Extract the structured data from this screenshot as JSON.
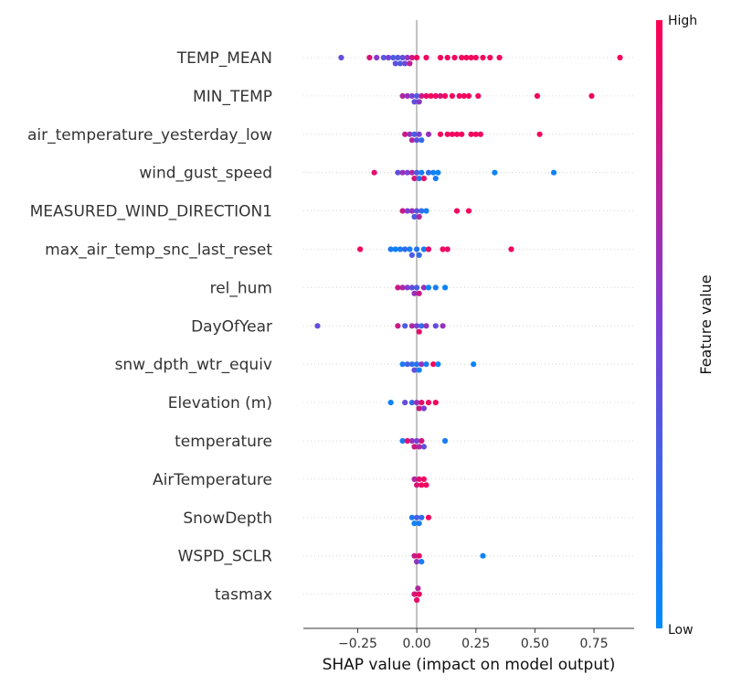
{
  "chart_data": {
    "type": "scatter",
    "subtype": "shap-beeswarm",
    "xlabel": "SHAP value (impact on model output)",
    "xlim": [
      -0.48,
      0.92
    ],
    "xticks": [
      -0.25,
      0.0,
      0.25,
      0.5,
      0.75
    ],
    "xtick_labels": [
      "−0.25",
      "0.00",
      "0.25",
      "0.50",
      "0.75"
    ],
    "features": [
      {
        "name": "TEMP_MEAN",
        "points": [
          {
            "x": -0.32,
            "v": 0.4
          },
          {
            "x": -0.2,
            "v": 0.85
          },
          {
            "x": -0.17,
            "v": 0.55
          },
          {
            "x": -0.14,
            "v": 0.35
          },
          {
            "x": -0.12,
            "v": 0.5
          },
          {
            "x": -0.1,
            "v": 0.3
          },
          {
            "x": -0.09,
            "v": 0.4
          },
          {
            "x": -0.08,
            "v": 0.35
          },
          {
            "x": -0.07,
            "v": 0.3
          },
          {
            "x": -0.06,
            "v": 0.4
          },
          {
            "x": -0.05,
            "v": 0.45
          },
          {
            "x": -0.04,
            "v": 0.6
          },
          {
            "x": -0.03,
            "v": 0.75
          },
          {
            "x": -0.02,
            "v": 0.8
          },
          {
            "x": 0.0,
            "v": 0.95
          },
          {
            "x": 0.04,
            "v": 0.95
          },
          {
            "x": 0.1,
            "v": 0.95
          },
          {
            "x": 0.13,
            "v": 0.95
          },
          {
            "x": 0.16,
            "v": 0.95
          },
          {
            "x": 0.19,
            "v": 0.95
          },
          {
            "x": 0.21,
            "v": 0.95
          },
          {
            "x": 0.23,
            "v": 0.95
          },
          {
            "x": 0.25,
            "v": 0.95
          },
          {
            "x": 0.28,
            "v": 0.95
          },
          {
            "x": 0.31,
            "v": 0.95
          },
          {
            "x": 0.35,
            "v": 0.95
          },
          {
            "x": 0.86,
            "v": 0.95
          }
        ]
      },
      {
        "name": "MIN_TEMP",
        "points": [
          {
            "x": -0.06,
            "v": 0.7
          },
          {
            "x": -0.04,
            "v": 0.6
          },
          {
            "x": -0.02,
            "v": 0.5
          },
          {
            "x": -0.01,
            "v": 0.4
          },
          {
            "x": 0.0,
            "v": 0.3
          },
          {
            "x": 0.01,
            "v": 0.55
          },
          {
            "x": 0.02,
            "v": 0.8
          },
          {
            "x": 0.04,
            "v": 0.9
          },
          {
            "x": 0.06,
            "v": 0.95
          },
          {
            "x": 0.08,
            "v": 0.95
          },
          {
            "x": 0.1,
            "v": 0.85
          },
          {
            "x": 0.12,
            "v": 0.95
          },
          {
            "x": 0.15,
            "v": 0.95
          },
          {
            "x": 0.18,
            "v": 0.95
          },
          {
            "x": 0.2,
            "v": 0.95
          },
          {
            "x": 0.22,
            "v": 0.95
          },
          {
            "x": 0.26,
            "v": 0.95
          },
          {
            "x": 0.51,
            "v": 0.95
          },
          {
            "x": 0.74,
            "v": 0.95
          }
        ]
      },
      {
        "name": "air_temperature_yesterday_low",
        "points": [
          {
            "x": -0.05,
            "v": 0.8
          },
          {
            "x": -0.03,
            "v": 0.6
          },
          {
            "x": -0.02,
            "v": 0.7
          },
          {
            "x": -0.01,
            "v": 0.3
          },
          {
            "x": 0.0,
            "v": 0.4
          },
          {
            "x": 0.01,
            "v": 0.5
          },
          {
            "x": 0.02,
            "v": 0.2
          },
          {
            "x": 0.05,
            "v": 0.6
          },
          {
            "x": 0.1,
            "v": 0.95
          },
          {
            "x": 0.13,
            "v": 0.95
          },
          {
            "x": 0.15,
            "v": 0.95
          },
          {
            "x": 0.17,
            "v": 0.95
          },
          {
            "x": 0.19,
            "v": 0.95
          },
          {
            "x": 0.23,
            "v": 0.95
          },
          {
            "x": 0.25,
            "v": 0.95
          },
          {
            "x": 0.27,
            "v": 0.95
          },
          {
            "x": 0.52,
            "v": 0.95
          }
        ]
      },
      {
        "name": "wind_gust_speed",
        "points": [
          {
            "x": -0.18,
            "v": 0.9
          },
          {
            "x": -0.08,
            "v": 0.4
          },
          {
            "x": -0.06,
            "v": 0.6
          },
          {
            "x": -0.04,
            "v": 0.5
          },
          {
            "x": -0.02,
            "v": 0.7
          },
          {
            "x": -0.01,
            "v": 0.85
          },
          {
            "x": 0.0,
            "v": 0.3
          },
          {
            "x": 0.01,
            "v": 0.15
          },
          {
            "x": 0.02,
            "v": 0.1
          },
          {
            "x": 0.03,
            "v": 0.9
          },
          {
            "x": 0.05,
            "v": 0.2
          },
          {
            "x": 0.07,
            "v": 0.05
          },
          {
            "x": 0.08,
            "v": 0.1
          },
          {
            "x": 0.09,
            "v": 0.05
          },
          {
            "x": 0.33,
            "v": 0.05
          },
          {
            "x": 0.58,
            "v": 0.05
          }
        ]
      },
      {
        "name": "MEASURED_WIND_DIRECTION1",
        "points": [
          {
            "x": -0.06,
            "v": 0.8
          },
          {
            "x": -0.04,
            "v": 0.5
          },
          {
            "x": -0.02,
            "v": 0.6
          },
          {
            "x": -0.01,
            "v": 0.3
          },
          {
            "x": 0.0,
            "v": 0.4
          },
          {
            "x": 0.01,
            "v": 0.7
          },
          {
            "x": 0.02,
            "v": 0.2
          },
          {
            "x": 0.04,
            "v": 0.1
          },
          {
            "x": 0.17,
            "v": 0.95
          },
          {
            "x": 0.22,
            "v": 0.95
          }
        ]
      },
      {
        "name": "max_air_temp_snc_last_reset",
        "points": [
          {
            "x": -0.24,
            "v": 0.95
          },
          {
            "x": -0.11,
            "v": 0.1
          },
          {
            "x": -0.09,
            "v": 0.05
          },
          {
            "x": -0.07,
            "v": 0.1
          },
          {
            "x": -0.05,
            "v": 0.2
          },
          {
            "x": -0.03,
            "v": 0.1
          },
          {
            "x": -0.02,
            "v": 0.3
          },
          {
            "x": 0.0,
            "v": 0.15
          },
          {
            "x": 0.01,
            "v": 0.2
          },
          {
            "x": 0.03,
            "v": 0.1
          },
          {
            "x": 0.05,
            "v": 0.9
          },
          {
            "x": 0.11,
            "v": 0.95
          },
          {
            "x": 0.13,
            "v": 0.9
          },
          {
            "x": 0.4,
            "v": 0.95
          }
        ]
      },
      {
        "name": "rel_hum",
        "points": [
          {
            "x": -0.08,
            "v": 0.8
          },
          {
            "x": -0.06,
            "v": 0.7
          },
          {
            "x": -0.04,
            "v": 0.5
          },
          {
            "x": -0.02,
            "v": 0.4
          },
          {
            "x": -0.01,
            "v": 0.6
          },
          {
            "x": 0.0,
            "v": 0.3
          },
          {
            "x": 0.01,
            "v": 0.8
          },
          {
            "x": 0.03,
            "v": 0.6
          },
          {
            "x": 0.05,
            "v": 0.05
          },
          {
            "x": 0.08,
            "v": 0.1
          },
          {
            "x": 0.12,
            "v": 0.05
          }
        ]
      },
      {
        "name": "DayOfYear",
        "points": [
          {
            "x": -0.42,
            "v": 0.4
          },
          {
            "x": -0.08,
            "v": 0.8
          },
          {
            "x": -0.05,
            "v": 0.3
          },
          {
            "x": -0.02,
            "v": 0.7
          },
          {
            "x": 0.0,
            "v": 0.5
          },
          {
            "x": 0.01,
            "v": 0.9
          },
          {
            "x": 0.02,
            "v": 0.2
          },
          {
            "x": 0.04,
            "v": 0.6
          },
          {
            "x": 0.08,
            "v": 0.4
          },
          {
            "x": 0.11,
            "v": 0.6
          }
        ]
      },
      {
        "name": "snw_dpth_wtr_equiv",
        "points": [
          {
            "x": -0.06,
            "v": 0.1
          },
          {
            "x": -0.04,
            "v": 0.3
          },
          {
            "x": -0.02,
            "v": 0.2
          },
          {
            "x": -0.01,
            "v": 0.4
          },
          {
            "x": 0.0,
            "v": 0.15
          },
          {
            "x": 0.01,
            "v": 0.05
          },
          {
            "x": 0.02,
            "v": 0.6
          },
          {
            "x": 0.04,
            "v": 0.1
          },
          {
            "x": 0.07,
            "v": 0.95
          },
          {
            "x": 0.09,
            "v": 0.05
          },
          {
            "x": 0.24,
            "v": 0.05
          }
        ]
      },
      {
        "name": "Elevation (m)",
        "points": [
          {
            "x": -0.11,
            "v": 0.05
          },
          {
            "x": -0.05,
            "v": 0.4
          },
          {
            "x": -0.02,
            "v": 0.2
          },
          {
            "x": 0.0,
            "v": 0.6
          },
          {
            "x": 0.01,
            "v": 0.8
          },
          {
            "x": 0.02,
            "v": 0.9
          },
          {
            "x": 0.03,
            "v": 0.5
          },
          {
            "x": 0.05,
            "v": 0.95
          },
          {
            "x": 0.08,
            "v": 0.95
          }
        ]
      },
      {
        "name": "temperature",
        "points": [
          {
            "x": -0.06,
            "v": 0.1
          },
          {
            "x": -0.04,
            "v": 0.9
          },
          {
            "x": -0.02,
            "v": 0.6
          },
          {
            "x": -0.01,
            "v": 0.8
          },
          {
            "x": 0.0,
            "v": 0.5
          },
          {
            "x": 0.01,
            "v": 0.7
          },
          {
            "x": 0.02,
            "v": 0.85
          },
          {
            "x": 0.03,
            "v": 0.4
          },
          {
            "x": 0.12,
            "v": 0.1
          }
        ]
      },
      {
        "name": "AirTemperature",
        "points": [
          {
            "x": -0.01,
            "v": 0.7
          },
          {
            "x": 0.0,
            "v": 0.85
          },
          {
            "x": 0.01,
            "v": 0.9
          },
          {
            "x": 0.02,
            "v": 0.95
          },
          {
            "x": 0.03,
            "v": 0.95
          },
          {
            "x": 0.04,
            "v": 0.95
          }
        ]
      },
      {
        "name": "SnowDepth",
        "points": [
          {
            "x": -0.02,
            "v": 0.1
          },
          {
            "x": -0.01,
            "v": 0.05
          },
          {
            "x": 0.0,
            "v": 0.3
          },
          {
            "x": 0.01,
            "v": 0.1
          },
          {
            "x": 0.02,
            "v": 0.2
          },
          {
            "x": 0.05,
            "v": 0.95
          }
        ]
      },
      {
        "name": "WSPD_SCLR",
        "points": [
          {
            "x": -0.01,
            "v": 0.8
          },
          {
            "x": 0.0,
            "v": 0.6
          },
          {
            "x": 0.01,
            "v": 0.9
          },
          {
            "x": 0.02,
            "v": 0.1
          },
          {
            "x": 0.28,
            "v": 0.05
          }
        ]
      },
      {
        "name": "tasmax",
        "points": [
          {
            "x": -0.01,
            "v": 0.85
          },
          {
            "x": 0.0,
            "v": 0.9
          },
          {
            "x": 0.005,
            "v": 0.7
          },
          {
            "x": 0.01,
            "v": 0.95
          }
        ]
      }
    ],
    "colorbar": {
      "title": "Feature value",
      "high_label": "High",
      "low_label": "Low",
      "low_color": "#008bfb",
      "mid_color": "#7b3fd4",
      "high_color": "#ff0052"
    },
    "grid": false
  }
}
